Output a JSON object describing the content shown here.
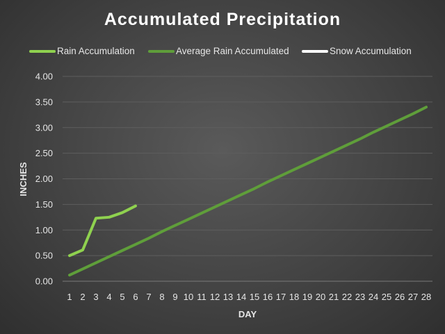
{
  "chart_data": {
    "type": "line",
    "title": "Accumulated Precipitation",
    "xlabel": "DAY",
    "ylabel": "INCHES",
    "x": [
      1,
      2,
      3,
      4,
      5,
      6,
      7,
      8,
      9,
      10,
      11,
      12,
      13,
      14,
      15,
      16,
      17,
      18,
      19,
      20,
      21,
      22,
      23,
      24,
      25,
      26,
      27,
      28
    ],
    "ylim": [
      0,
      4
    ],
    "yticks": [
      "0.00",
      "0.50",
      "1.00",
      "1.50",
      "2.00",
      "2.50",
      "3.00",
      "3.50",
      "4.00"
    ],
    "grid": true,
    "legend_position": "top",
    "series": [
      {
        "name": "Rain Accumulation",
        "color": "#8fd14f",
        "x": [
          1,
          2,
          3,
          4,
          5,
          6
        ],
        "values": [
          0.5,
          0.61,
          1.23,
          1.25,
          1.34,
          1.47
        ]
      },
      {
        "name": "Average Rain Accumulated",
        "color": "#5f9e3a",
        "x": [
          1,
          2,
          3,
          4,
          5,
          6,
          7,
          8,
          9,
          10,
          11,
          12,
          13,
          14,
          15,
          16,
          17,
          18,
          19,
          20,
          21,
          22,
          23,
          24,
          25,
          26,
          27,
          28
        ],
        "values": [
          0.12,
          0.24,
          0.36,
          0.48,
          0.6,
          0.72,
          0.84,
          0.97,
          1.09,
          1.21,
          1.33,
          1.45,
          1.57,
          1.69,
          1.81,
          1.94,
          2.06,
          2.18,
          2.3,
          2.42,
          2.54,
          2.66,
          2.78,
          2.91,
          3.03,
          3.15,
          3.27,
          3.4
        ]
      },
      {
        "name": "Snow Accumulation",
        "color": "#ffffff",
        "x": [],
        "values": []
      }
    ]
  }
}
